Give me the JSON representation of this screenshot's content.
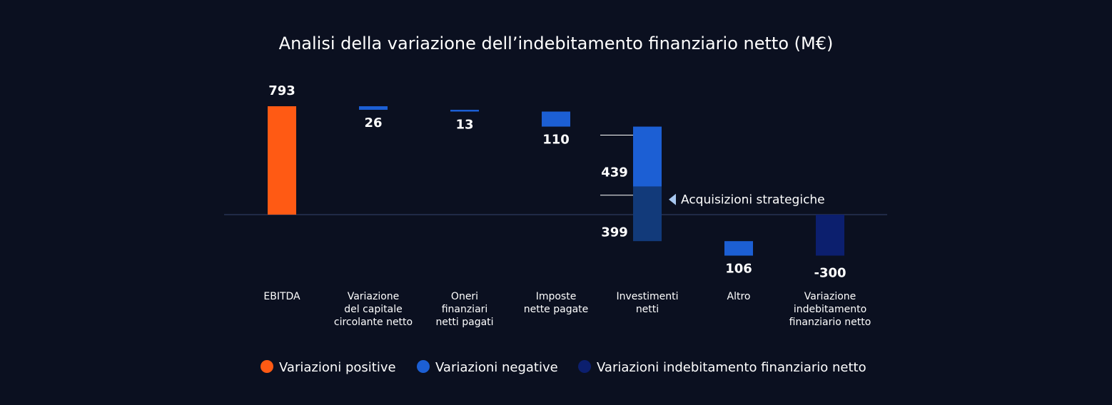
{
  "colors": {
    "background": "#0b1020",
    "positive": "#ff5a14",
    "negative": "#1c5fd4",
    "negative_strategic": "#123a7a",
    "net": "#0c1f6e",
    "baseline": "#2e3a5c",
    "marker": "#a8c8f0"
  },
  "chart_data": {
    "type": "bar",
    "subtype": "waterfall",
    "title": "Analisi della variazione dell’indebitamento finanziario netto (M€)",
    "grid": false,
    "legend_position": "bottom",
    "categories": [
      [
        "EBITDA"
      ],
      [
        "Variazione",
        "del capitale",
        "circolante netto"
      ],
      [
        "Oneri",
        "finanziari",
        "netti pagati"
      ],
      [
        "Imposte",
        "nette pagate"
      ],
      [
        "Investimenti",
        "netti"
      ],
      [
        "Altro"
      ],
      [
        "Variazione",
        "indebitamento",
        "finanziario netto"
      ]
    ],
    "bars": [
      {
        "value": 793,
        "label": "793",
        "kind": "positive"
      },
      {
        "value": -26,
        "label": "26",
        "kind": "negative"
      },
      {
        "value": -13,
        "label": "13",
        "kind": "negative"
      },
      {
        "value": -110,
        "label": "110",
        "kind": "negative"
      },
      {
        "value": -838,
        "kind": "negative",
        "segments": [
          {
            "value": -439,
            "label": "439",
            "kind": "negative"
          },
          {
            "value": -399,
            "label": "399",
            "kind": "negative_strategic"
          }
        ]
      },
      {
        "value": -106,
        "label": "106",
        "kind": "negative"
      },
      {
        "value": -300,
        "label": "-300",
        "kind": "net"
      }
    ],
    "annotation": "Acquisizioni strategiche",
    "legend": [
      {
        "label": "Variazioni positive",
        "kind": "positive"
      },
      {
        "label": "Variazioni negative",
        "kind": "negative"
      },
      {
        "label": "Variazioni indebitamento finanziario netto",
        "kind": "net"
      }
    ]
  }
}
